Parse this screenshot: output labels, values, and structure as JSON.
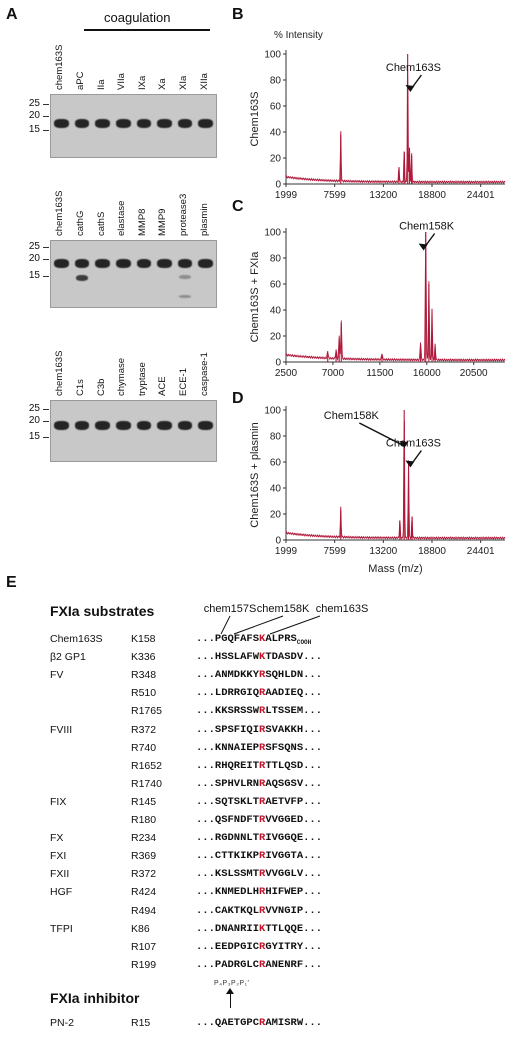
{
  "panel_a": {
    "letter": "A",
    "gel1": {
      "group_label": "coagulation",
      "lanes": [
        "chem163S",
        "aPC",
        "IIa",
        "VIIa",
        "IXa",
        "Xa",
        "XIa",
        "XIIa"
      ],
      "mw": [
        "25",
        "20",
        "15"
      ]
    },
    "gel2": {
      "lanes": [
        "chem163S",
        "cathG",
        "cathS",
        "elastase",
        "MMP8",
        "MMP9",
        "protease3",
        "plasmin"
      ],
      "mw": [
        "25",
        "20",
        "15"
      ]
    },
    "gel3": {
      "lanes": [
        "chem163S",
        "C1s",
        "C3b",
        "chymase",
        "tryptase",
        "ACE",
        "ECE-1",
        "caspase-1"
      ],
      "mw": [
        "25",
        "20",
        "15"
      ]
    }
  },
  "chart_data": [
    {
      "type": "line",
      "panel": "B",
      "title": "% Intensity",
      "ylabel": "Chem163S",
      "xlabel": "",
      "x_ticks": [
        "1999",
        "7599",
        "13200",
        "18800",
        "24401"
      ],
      "xlim": [
        1999,
        27200
      ],
      "y_ticks": [
        "0",
        "20",
        "40",
        "60",
        "80",
        "100"
      ],
      "ylim": [
        0,
        100
      ],
      "annotations": [
        {
          "text": "Chem163S",
          "x": 16200,
          "y": 70
        }
      ],
      "series": [
        {
          "color": "#b0183a",
          "peaks": [
            {
              "x": 8300,
              "y": 38
            },
            {
              "x": 15000,
              "y": 13
            },
            {
              "x": 15600,
              "y": 25
            },
            {
              "x": 16000,
              "y": 100
            },
            {
              "x": 16200,
              "y": 28
            },
            {
              "x": 16450,
              "y": 22
            }
          ]
        }
      ]
    },
    {
      "type": "line",
      "panel": "C",
      "title": "",
      "ylabel": "Chem163S + FXIa",
      "xlabel": "",
      "x_ticks": [
        "2500",
        "7000",
        "11500",
        "16000",
        "20500"
      ],
      "xlim": [
        2500,
        23500
      ],
      "y_ticks": [
        "0",
        "20",
        "40",
        "60",
        "80",
        "100"
      ],
      "ylim": [
        0,
        100
      ],
      "annotations": [
        {
          "text": "Chem158K",
          "x": 15600,
          "y": 85
        }
      ],
      "series": [
        {
          "color": "#b0183a",
          "peaks": [
            {
              "x": 6500,
              "y": 6
            },
            {
              "x": 7300,
              "y": 7
            },
            {
              "x": 7600,
              "y": 18
            },
            {
              "x": 7800,
              "y": 30
            },
            {
              "x": 11700,
              "y": 5
            },
            {
              "x": 15400,
              "y": 14
            },
            {
              "x": 15900,
              "y": 100
            },
            {
              "x": 16200,
              "y": 60
            },
            {
              "x": 16500,
              "y": 40
            },
            {
              "x": 16800,
              "y": 12
            }
          ]
        }
      ]
    },
    {
      "type": "line",
      "panel": "D",
      "title": "",
      "ylabel": "Chem163S + plasmin",
      "xlabel": "Mass (m/z)",
      "x_ticks": [
        "1999",
        "7599",
        "13200",
        "18800",
        "24401"
      ],
      "xlim": [
        1999,
        27200
      ],
      "y_ticks": [
        "0",
        "20",
        "40",
        "60",
        "80",
        "100"
      ],
      "ylim": [
        0,
        100
      ],
      "annotations": [
        {
          "text": "Chem158K",
          "x": 15500,
          "y": 70
        },
        {
          "text": "Chem163S",
          "x": 16200,
          "y": 55
        }
      ],
      "series": [
        {
          "color": "#b0183a",
          "peaks": [
            {
              "x": 8300,
              "y": 23
            },
            {
              "x": 15100,
              "y": 15
            },
            {
              "x": 15600,
              "y": 100
            },
            {
              "x": 16100,
              "y": 60
            },
            {
              "x": 16500,
              "y": 18
            }
          ]
        }
      ]
    }
  ],
  "panel_e": {
    "letter": "E",
    "substrates_header": "FXIa substrates",
    "inhibitor_header": "FXIa inhibitor",
    "site_labels": [
      "chem157S",
      "chem158K",
      "chem163S"
    ],
    "pos_label": "P₄P₃P₂P₁′",
    "rows": [
      {
        "protein": "Chem163S",
        "site": "K158",
        "pre": "...PGQFAFS",
        "res": "K",
        "post": "ALPRS",
        "suffix": "COOH"
      },
      {
        "protein": "β2 GP1",
        "site": "K336",
        "pre": "...HSSLAFW",
        "res": "K",
        "post": "TDASDV..."
      },
      {
        "protein": "FV",
        "site": "R348",
        "pre": "...ANMDKKY",
        "res": "R",
        "post": "SQHLDN..."
      },
      {
        "protein": "",
        "site": "R510",
        "pre": "...LDRRGIQ",
        "res": "R",
        "post": "AADIEQ..."
      },
      {
        "protein": "",
        "site": "R1765",
        "pre": "...KKSRSSW",
        "res": "R",
        "post": "LTSSEM..."
      },
      {
        "protein": "FVIII",
        "site": "R372",
        "pre": "...SPSFIQI",
        "res": "R",
        "post": "SVAKKH..."
      },
      {
        "protein": "",
        "site": "R740",
        "pre": "...KNNAIEP",
        "res": "R",
        "post": "SFSQNS..."
      },
      {
        "protein": "",
        "site": "R1652",
        "pre": "...RHQREIT",
        "res": "R",
        "post": "TTLQSD..."
      },
      {
        "protein": "",
        "site": "R1740",
        "pre": "...SPHVLRN",
        "res": "R",
        "post": "AQSGSV..."
      },
      {
        "protein": "FIX",
        "site": "R145",
        "pre": "...SQTSKLT",
        "res": "R",
        "post": "AETVFP..."
      },
      {
        "protein": "",
        "site": "R180",
        "pre": "...QSFNDFT",
        "res": "R",
        "post": "VVGGED..."
      },
      {
        "protein": "FX",
        "site": "R234",
        "pre": "...RGDNNLT",
        "res": "R",
        "post": "IVGGQE..."
      },
      {
        "protein": "FXI",
        "site": "R369",
        "pre": "...CTTKIKP",
        "res": "R",
        "post": "IVGGTA..."
      },
      {
        "protein": "FXII",
        "site": "R372",
        "pre": "...KSLSSMT",
        "res": "R",
        "post": "VVGGLV..."
      },
      {
        "protein": "HGF",
        "site": "R424",
        "pre": "...KNMEDLH",
        "res": "R",
        "post": "HIFWEP..."
      },
      {
        "protein": "",
        "site": "R494",
        "pre": "...CAKTKQL",
        "res": "R",
        "post": "VVNGIP..."
      },
      {
        "protein": "TFPI",
        "site": "K86",
        "pre": "...DNANRII",
        "res": "K",
        "post": "TTLQQE..."
      },
      {
        "protein": "",
        "site": "R107",
        "pre": "...EEDPGIC",
        "res": "R",
        "post": "GYITRY..."
      },
      {
        "protein": "",
        "site": "R199",
        "pre": "...PADRGLC",
        "res": "R",
        "post": "ANENRF..."
      }
    ],
    "inhibitor_row": {
      "protein": "PN-2",
      "site": "R15",
      "pre": "...QAETGPC",
      "res": "R",
      "post": "AMISRW..."
    }
  }
}
